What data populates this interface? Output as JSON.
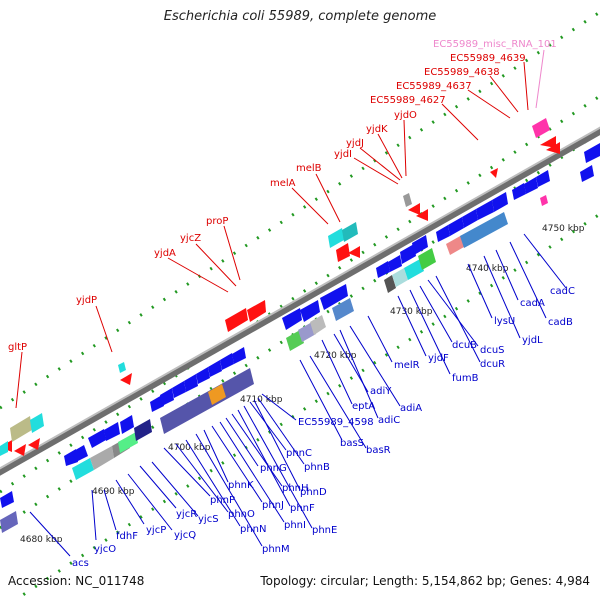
{
  "title": "Escherichia coli 55989, complete genome",
  "footer": {
    "accession": "Accession: NC_011748",
    "summary": "Topology: circular; Length: 5,154,862 bp; Genes: 4,984"
  },
  "ticks": [
    "4680 kbp",
    "4690 kbp",
    "4700 kbp",
    "4710 kbp",
    "4720 kbp",
    "4730 kbp",
    "4740 kbp",
    "4750 kbp"
  ],
  "forward_labels": [
    "gltP",
    "yjdP",
    "yjdA",
    "yjcZ",
    "proP",
    "melA",
    "melB",
    "yjdI",
    "yjdJ",
    "yjdK",
    "yjdO",
    "EC55989_4627",
    "EC55989_4637",
    "EC55989_4638",
    "EC55989_4639",
    "EC55989_misc_RNA_101"
  ],
  "reverse_labels": [
    "acs",
    "yjcO",
    "fdhF",
    "yjcP",
    "yjcQ",
    "yjcR",
    "yjcS",
    "phnP",
    "phnO",
    "phnN",
    "phnM",
    "phnK",
    "phnJ",
    "phnI",
    "phnG",
    "phnH",
    "phnF",
    "phnE",
    "phnC",
    "phnD",
    "phnB",
    "EC55989_4598",
    "basS",
    "basR",
    "eptA",
    "adiY",
    "adiC",
    "adiA",
    "melR",
    "yjdF",
    "fumB",
    "dcuB",
    "dcuS",
    "dcuR",
    "lysU",
    "yjdL",
    "cadA",
    "cadB",
    "cadC"
  ],
  "colors": {
    "forward_label": "#dd0000",
    "reverse_label": "#0000cc",
    "misc_rna_label": "#ee88cc",
    "forward_gene": "#ff0000",
    "reverse_gene": "#0000dd",
    "backbone": "#777777",
    "tick_dots": "#228822"
  }
}
